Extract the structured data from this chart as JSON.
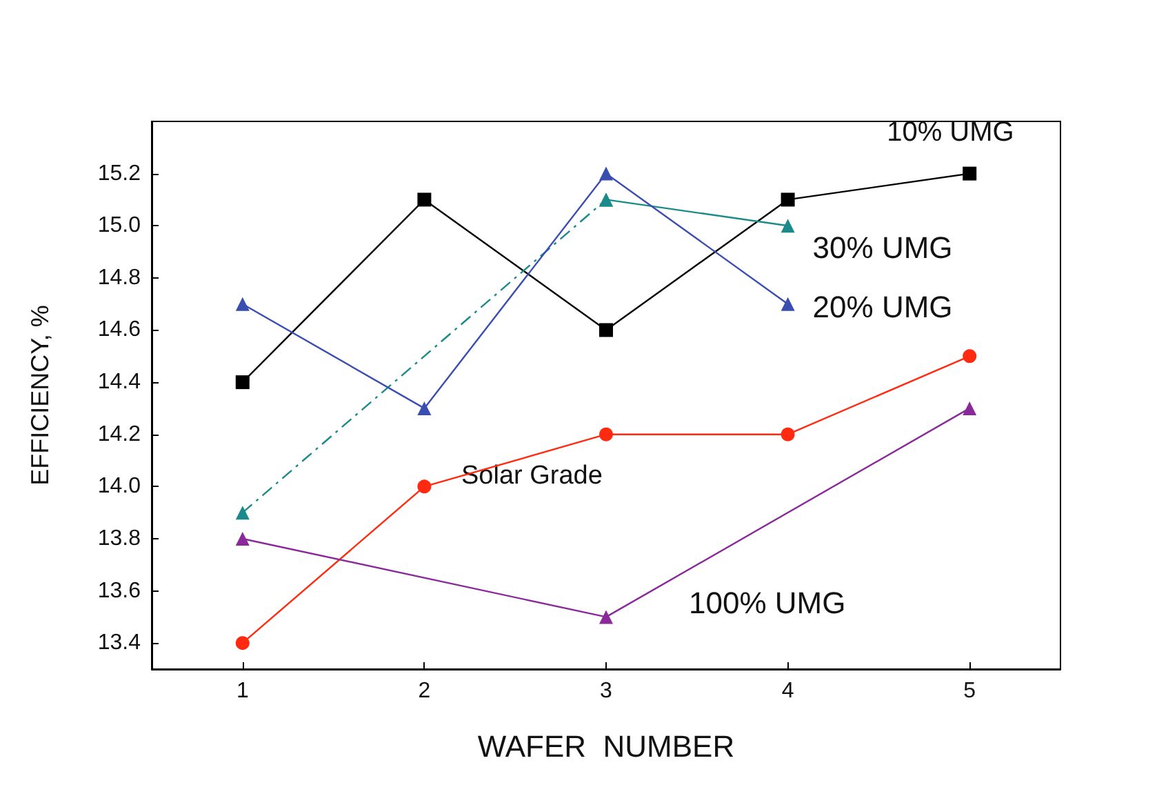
{
  "chart_data": {
    "type": "line",
    "xlabel": "WAFER  NUMBER",
    "ylabel": "EFFICIENCY, %",
    "categories": [
      "1",
      "2",
      "3",
      "4",
      "5"
    ],
    "series": [
      {
        "name": "10% UMG",
        "color": "#000000",
        "marker": "square",
        "values": [
          14.4,
          15.1,
          14.6,
          15.1,
          15.2
        ]
      },
      {
        "color": "#1a8a8a",
        "marker": "triangle",
        "line_style": "dashed",
        "values": [
          13.9,
          null,
          15.1,
          null,
          null
        ]
      },
      {
        "name": "30% UMG",
        "color": "#1a8a8a",
        "marker": "triangle",
        "values": [
          null,
          null,
          15.1,
          15.0,
          null
        ]
      },
      {
        "name": "20% UMG",
        "color": "#3a4db0",
        "marker": "triangle",
        "values": [
          14.7,
          14.3,
          15.2,
          14.7,
          null
        ]
      },
      {
        "name": "Solar Grade",
        "color": "#ff2a10",
        "marker": "circle",
        "values": [
          13.4,
          14.0,
          14.2,
          14.2,
          14.5
        ]
      },
      {
        "name": "100% UMG",
        "color": "#8a2a9a",
        "marker": "triangle",
        "values": [
          13.8,
          null,
          13.5,
          null,
          14.3
        ]
      }
    ],
    "ylim": [
      13.3,
      15.4
    ],
    "yticks": [
      {
        "value": 13.4,
        "label": "13.4"
      },
      {
        "value": 13.6,
        "label": "13.6"
      },
      {
        "value": 13.8,
        "label": "13.8"
      },
      {
        "value": 14,
        "label": "14.0"
      },
      {
        "value": 14.2,
        "label": "14.2"
      },
      {
        "value": 14.4,
        "label": "14.4"
      },
      {
        "value": 14.6,
        "label": "14.6"
      },
      {
        "value": 14.8,
        "label": "14.8"
      },
      {
        "value": 15,
        "label": "15.0"
      },
      {
        "value": 15.2,
        "label": "15.2"
      }
    ],
    "grid": false
  }
}
